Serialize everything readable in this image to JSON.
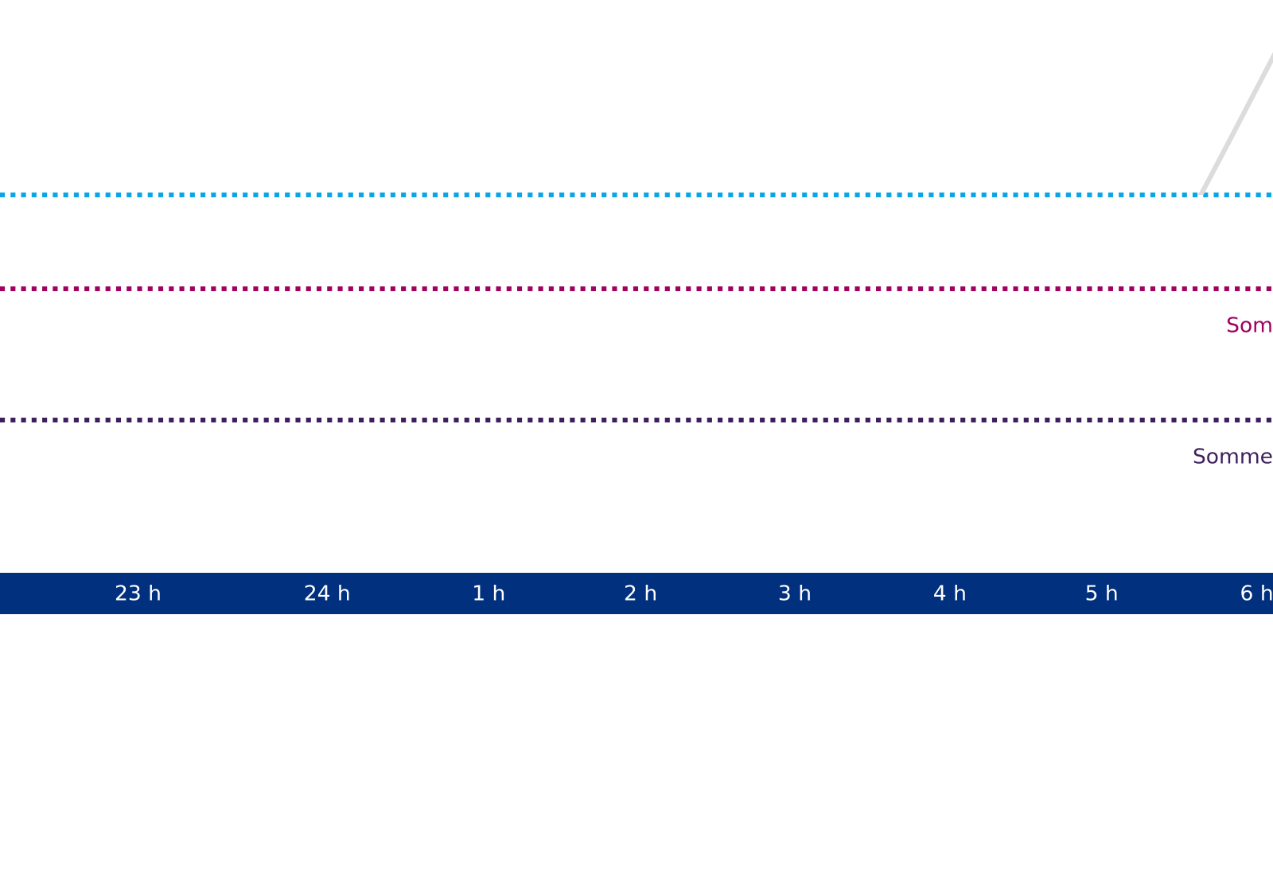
{
  "hours": [
    "23 h",
    "24 h",
    "1 h",
    "2 h",
    "3 h",
    "4 h",
    "5 h",
    "6 h"
  ],
  "levels": [
    {
      "label": "Som"
    },
    {
      "label": "Somme"
    }
  ]
}
